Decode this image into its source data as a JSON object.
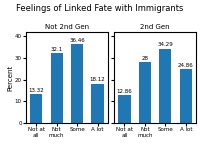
{
  "title": "Feelings of Linked Fate with Immigrants",
  "chart_data": [
    {
      "type": "bar",
      "title": "Not 2nd Gen",
      "ylabel": "Percent",
      "categories": [
        "Not at all",
        "Not much",
        "Some",
        "A lot"
      ],
      "values": [
        13.32,
        32.1,
        36.46,
        18.12
      ],
      "ylim": [
        0,
        42
      ],
      "yticks": [
        0,
        10,
        20,
        30,
        40
      ],
      "data_labels": true,
      "grid": false
    },
    {
      "type": "bar",
      "title": "2nd Gen",
      "categories": [
        "Not at all",
        "Not much",
        "Some",
        "A lot"
      ],
      "values": [
        12.86,
        28,
        34.29,
        24.86
      ],
      "ylim": [
        0,
        42
      ],
      "yticks": [
        0,
        10,
        20,
        30,
        40
      ],
      "data_labels": true,
      "grid": false,
      "tick_labels": "x"
    }
  ]
}
